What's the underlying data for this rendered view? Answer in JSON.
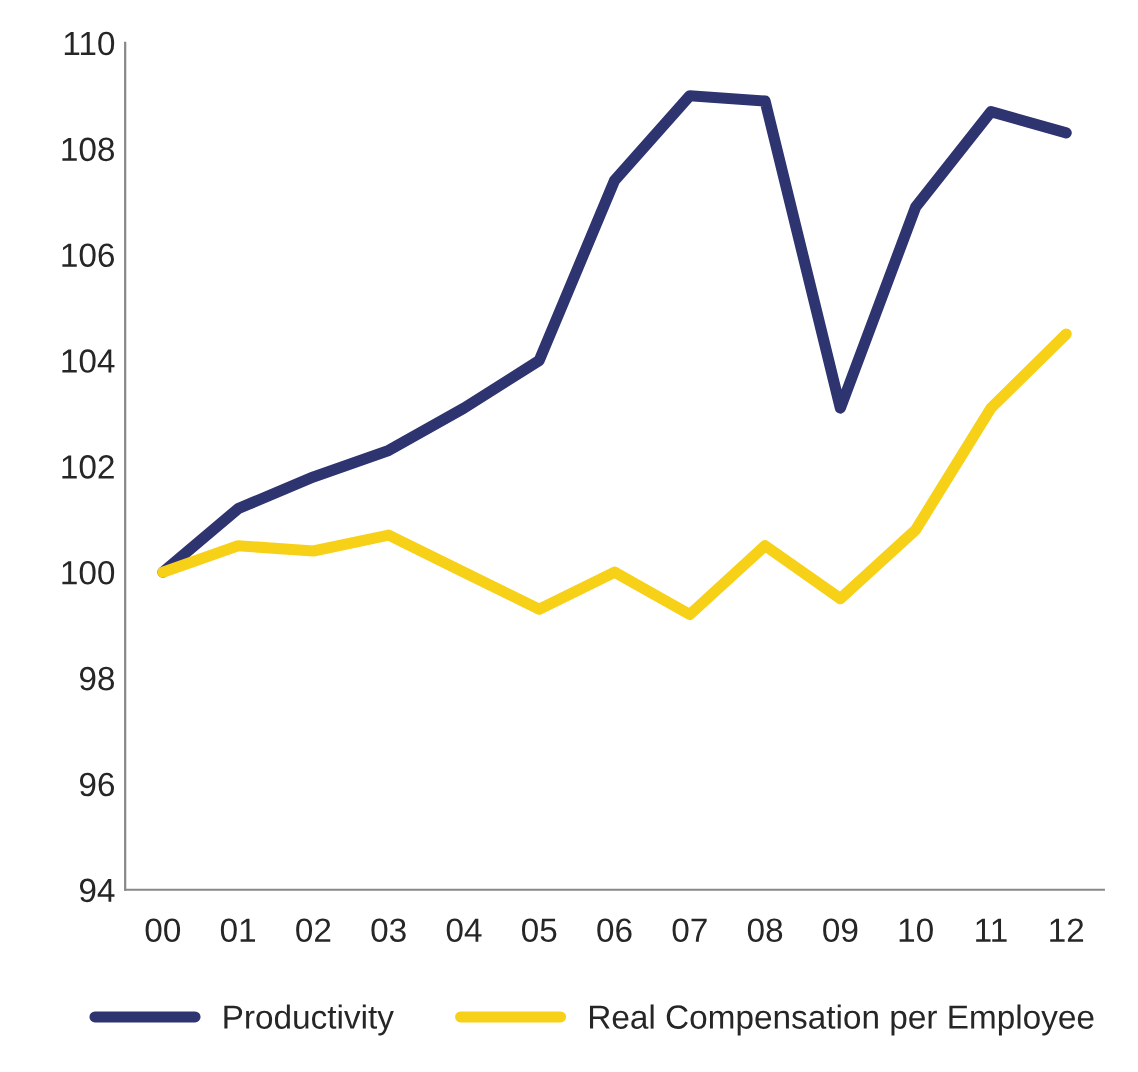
{
  "chart_data": {
    "type": "line",
    "categories": [
      "00",
      "01",
      "02",
      "03",
      "04",
      "05",
      "06",
      "07",
      "08",
      "09",
      "10",
      "11",
      "12"
    ],
    "series": [
      {
        "name": "Productivity",
        "color": "#2e3470",
        "values": [
          100,
          101.2,
          101.8,
          102.3,
          103.1,
          104.0,
          107.4,
          109.0,
          108.9,
          103.1,
          106.9,
          108.7,
          108.3
        ]
      },
      {
        "name": "Real Compensation per Employee",
        "color": "#f7d117",
        "values": [
          100,
          100.5,
          100.4,
          100.7,
          100.0,
          99.3,
          100.0,
          99.2,
          100.5,
          99.5,
          100.8,
          103.1,
          104.5
        ]
      }
    ],
    "ylim": [
      94,
      110
    ],
    "yticks": [
      94,
      96,
      98,
      100,
      102,
      104,
      106,
      108,
      110
    ],
    "grid": false,
    "legend": "bottom",
    "marker": "none",
    "line_style": "solid"
  }
}
